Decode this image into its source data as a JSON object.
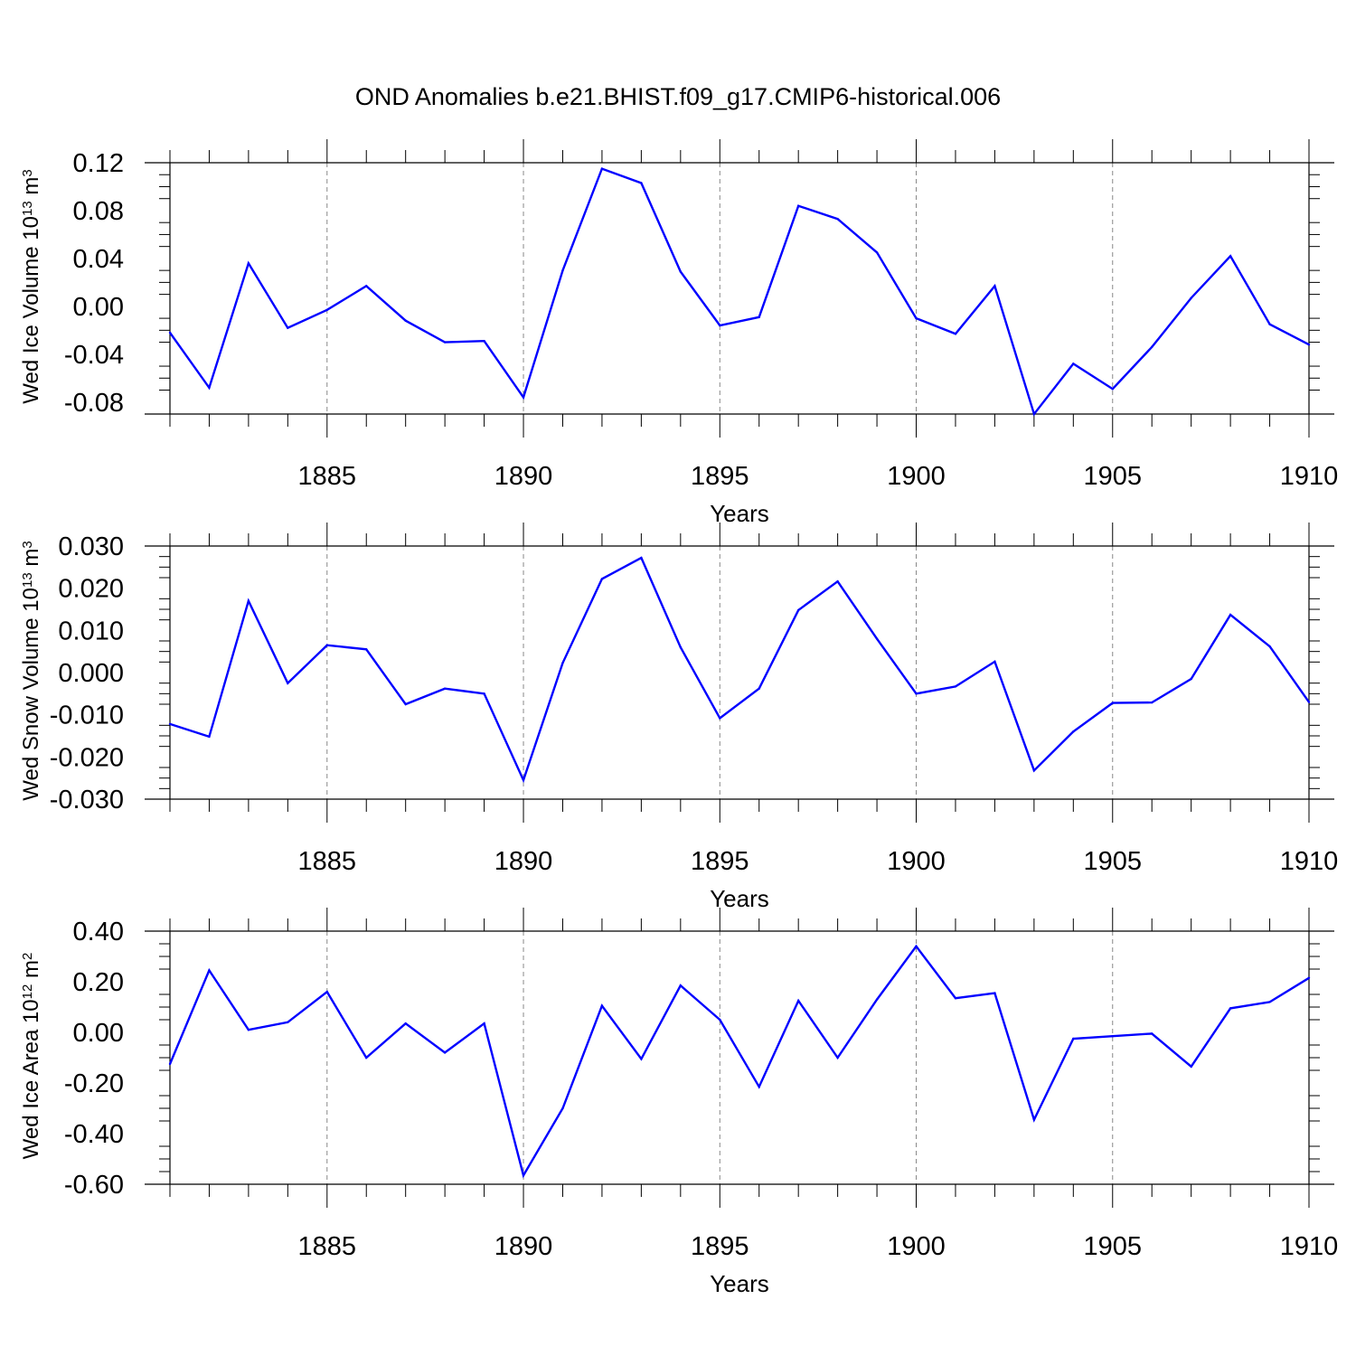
{
  "title": "OND Anomalies b.e21.BHIST.f09_g17.CMIP6-historical.006",
  "chart_data": [
    {
      "type": "line",
      "ylabel": "Wed Ice Volume 10",
      "ylabel_exp": "13",
      "ylabel_unit": " m",
      "ylabel_unit_exp": "3",
      "xlabel": "Years",
      "xlim": [
        1881,
        1910
      ],
      "ylim": [
        -0.09,
        0.12
      ],
      "yticks": [
        -0.08,
        -0.04,
        0.0,
        0.04,
        0.08,
        0.12
      ],
      "ytick_labels": [
        "-0.08",
        "-0.04",
        "0.00",
        "0.04",
        "0.08",
        "0.12"
      ],
      "xticks": [
        1885,
        1890,
        1895,
        1900,
        1905,
        1910
      ],
      "xtick_labels": [
        "1885",
        "1890",
        "1895",
        "1900",
        "1905",
        "1910"
      ],
      "line_color": "#0000ff",
      "x": [
        1881,
        1882,
        1883,
        1884,
        1885,
        1886,
        1887,
        1888,
        1889,
        1890,
        1891,
        1892,
        1893,
        1894,
        1895,
        1896,
        1897,
        1898,
        1899,
        1900,
        1901,
        1902,
        1903,
        1904,
        1905,
        1906,
        1907,
        1908,
        1909,
        1910
      ],
      "values": [
        -0.022,
        -0.068,
        0.036,
        -0.018,
        -0.003,
        0.017,
        -0.012,
        -0.03,
        -0.029,
        -0.076,
        0.03,
        0.115,
        0.103,
        0.029,
        -0.016,
        -0.009,
        0.084,
        0.073,
        0.045,
        -0.01,
        -0.023,
        0.017,
        -0.09,
        -0.048,
        -0.069,
        -0.034,
        0.007,
        0.042,
        -0.015,
        -0.032
      ]
    },
    {
      "type": "line",
      "ylabel": "Wed Snow Volume 10",
      "ylabel_exp": "13",
      "ylabel_unit": " m",
      "ylabel_unit_exp": "3",
      "xlabel": "Years",
      "xlim": [
        1881,
        1910
      ],
      "ylim": [
        -0.03,
        0.03
      ],
      "yticks": [
        -0.03,
        -0.02,
        -0.01,
        0.0,
        0.01,
        0.02,
        0.03
      ],
      "ytick_labels": [
        "-0.030",
        "-0.020",
        "-0.010",
        "0.000",
        "0.010",
        "0.020",
        "0.030"
      ],
      "xticks": [
        1885,
        1890,
        1895,
        1900,
        1905,
        1910
      ],
      "xtick_labels": [
        "1885",
        "1890",
        "1895",
        "1900",
        "1905",
        "1910"
      ],
      "line_color": "#0000ff",
      "x": [
        1881,
        1882,
        1883,
        1884,
        1885,
        1886,
        1887,
        1888,
        1889,
        1890,
        1891,
        1892,
        1893,
        1894,
        1895,
        1896,
        1897,
        1898,
        1899,
        1900,
        1901,
        1902,
        1903,
        1904,
        1905,
        1906,
        1907,
        1908,
        1909,
        1910
      ],
      "values": [
        -0.0122,
        -0.0152,
        0.017,
        -0.0025,
        0.0065,
        0.0055,
        -0.0075,
        -0.0038,
        -0.005,
        -0.0255,
        0.0023,
        0.0222,
        0.0272,
        0.006,
        -0.0108,
        -0.0038,
        0.0148,
        0.0216,
        0.008,
        -0.005,
        -0.0033,
        0.0026,
        -0.0232,
        -0.014,
        -0.0072,
        -0.0071,
        -0.0015,
        0.0137,
        0.0062,
        -0.007
      ]
    },
    {
      "type": "line",
      "ylabel": "Wed Ice Area 10",
      "ylabel_exp": "12",
      "ylabel_unit": " m",
      "ylabel_unit_exp": "2",
      "xlabel": "Years",
      "xlim": [
        1881,
        1910
      ],
      "ylim": [
        -0.6,
        0.4
      ],
      "yticks": [
        -0.6,
        -0.4,
        -0.2,
        0.0,
        0.2,
        0.4
      ],
      "ytick_labels": [
        "-0.60",
        "-0.40",
        "-0.20",
        "0.00",
        "0.20",
        "0.40"
      ],
      "xticks": [
        1885,
        1890,
        1895,
        1900,
        1905,
        1910
      ],
      "xtick_labels": [
        "1885",
        "1890",
        "1895",
        "1900",
        "1905",
        "1910"
      ],
      "line_color": "#0000ff",
      "x": [
        1881,
        1882,
        1883,
        1884,
        1885,
        1886,
        1887,
        1888,
        1889,
        1890,
        1891,
        1892,
        1893,
        1894,
        1895,
        1896,
        1897,
        1898,
        1899,
        1900,
        1901,
        1902,
        1903,
        1904,
        1905,
        1906,
        1907,
        1908,
        1909,
        1910
      ],
      "values": [
        -0.125,
        0.245,
        0.01,
        0.04,
        0.16,
        -0.1,
        0.035,
        -0.08,
        0.035,
        -0.565,
        -0.3,
        0.105,
        -0.105,
        0.185,
        0.05,
        -0.215,
        0.125,
        -0.1,
        0.13,
        0.34,
        0.135,
        0.155,
        -0.345,
        -0.025,
        -0.015,
        -0.005,
        -0.135,
        0.095,
        0.12,
        0.215
      ]
    }
  ]
}
